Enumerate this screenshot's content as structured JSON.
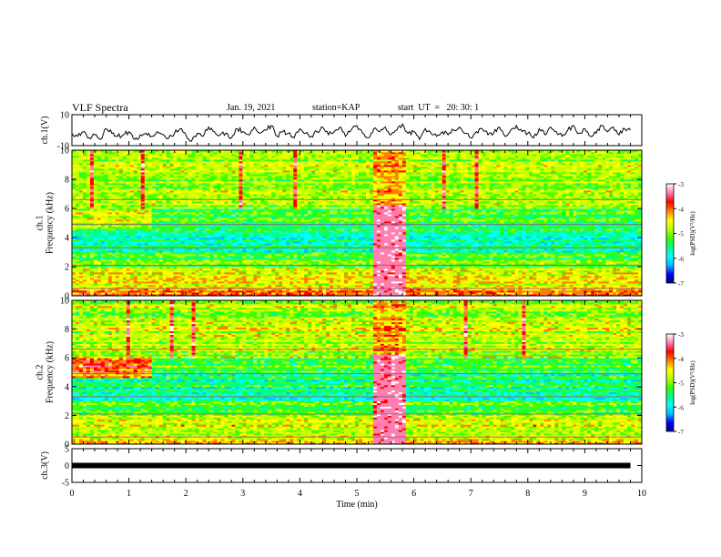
{
  "header": {
    "title": "VLF Spectra",
    "date": "Jan. 19, 2021",
    "station": "station=KAP",
    "start": "start  UT  =   20: 30: 1"
  },
  "chart_data": [
    {
      "type": "line",
      "name": "waveform-ch1",
      "ylabel": "ch.1(V)",
      "ylim": [
        -10,
        10
      ],
      "yticks": [
        "10",
        "-10"
      ],
      "xlim": [
        0,
        10
      ],
      "series": [
        {
          "x": [
            0.0,
            0.1,
            0.2,
            0.3,
            0.4,
            0.5,
            0.6,
            0.7,
            0.8,
            0.9,
            1.0,
            1.1,
            1.2,
            1.3,
            1.4,
            1.5,
            1.6,
            1.7,
            1.8,
            1.9,
            2.0,
            2.1,
            2.2,
            2.3,
            2.4,
            2.5,
            2.6,
            2.7,
            2.8,
            2.9,
            3.0,
            3.1,
            3.2,
            3.3,
            3.4,
            3.5,
            3.6,
            3.7,
            3.8,
            3.9,
            4.0,
            4.1,
            4.2,
            4.3,
            4.4,
            4.5,
            4.6,
            4.7,
            4.8,
            4.9,
            5.0,
            5.1,
            5.2,
            5.3,
            5.4,
            5.5,
            5.6,
            5.7,
            5.8,
            5.9,
            6.0,
            6.1,
            6.2,
            6.3,
            6.4,
            6.5,
            6.6,
            6.7,
            6.8,
            6.9,
            7.0,
            7.1,
            7.2,
            7.3,
            7.4,
            7.5,
            7.6,
            7.7,
            7.8,
            7.9,
            8.0,
            8.1,
            8.2,
            8.3,
            8.4,
            8.5,
            8.6,
            8.7,
            8.8,
            8.9,
            9.0,
            9.1,
            9.2,
            9.3,
            9.4,
            9.5,
            9.6,
            9.7,
            9.8
          ],
          "y": [
            -2,
            -4,
            -1,
            -5,
            -3,
            -6,
            1,
            -2,
            -4,
            -3,
            -1,
            -6,
            -3,
            -2,
            -4,
            -1,
            -3,
            -5,
            -2,
            1,
            -3,
            -7,
            -2,
            -4,
            2,
            -1,
            -3,
            -2,
            -5,
            1,
            -1,
            -3,
            2,
            -2,
            0,
            3,
            -4,
            -1,
            -2,
            -5,
            1,
            -2,
            -4,
            -1,
            2,
            -3,
            -1,
            2,
            -4,
            0,
            3,
            -2,
            -5,
            1,
            -1,
            2,
            -3,
            0,
            4,
            -2,
            -1,
            -6,
            1,
            -2,
            -4,
            -1,
            -3,
            0,
            2,
            -2,
            -5,
            -1,
            1,
            -3,
            -2,
            2,
            -4,
            0,
            3,
            -1,
            -2,
            -5,
            1,
            -3,
            2,
            -1,
            -4,
            0,
            3,
            -2,
            1,
            -4,
            -2,
            3,
            -1,
            2,
            -3,
            1,
            0
          ]
        }
      ]
    },
    {
      "type": "heatmap",
      "name": "spectrogram-ch1",
      "ylabel": "ch.1\nFrequency (kHz)",
      "ylim": [
        0,
        10
      ],
      "yticks": [
        "0",
        "2",
        "4",
        "6",
        "8",
        "10"
      ],
      "xlim": [
        0,
        10
      ],
      "colorbar": {
        "label": "log(PSD)(V²/Hz)",
        "range": [
          -7,
          -3
        ],
        "ticks": [
          "-3",
          "-4",
          "-5",
          "-6",
          "-7"
        ]
      }
    },
    {
      "type": "heatmap",
      "name": "spectrogram-ch2",
      "ylabel": "ch.2\nFrequency (kHz)",
      "ylim": [
        0,
        10
      ],
      "yticks": [
        "0",
        "2",
        "4",
        "6",
        "8",
        "10"
      ],
      "xlim": [
        0,
        10
      ],
      "colorbar": {
        "label": "log(PSD)(V²/Hz)",
        "range": [
          -7,
          -3
        ],
        "ticks": [
          "-3",
          "-4",
          "-5",
          "-6",
          "-7"
        ]
      }
    },
    {
      "type": "line",
      "name": "waveform-ch3",
      "ylabel": "ch.3(V)",
      "ylim": [
        -5,
        5
      ],
      "yticks": [
        "5",
        "0",
        "-5"
      ],
      "xlim": [
        0,
        10
      ],
      "series": [
        {
          "x": [
            0,
            9.8
          ],
          "y": [
            0,
            0
          ]
        }
      ]
    }
  ],
  "xaxis": {
    "label": "Time  (min)",
    "ticks": [
      "0",
      "1",
      "2",
      "3",
      "4",
      "5",
      "6",
      "7",
      "8",
      "9",
      "10"
    ]
  },
  "colors": {
    "colormap": [
      "#000080",
      "#0000ff",
      "#00bfff",
      "#00ffff",
      "#00ff80",
      "#40ff00",
      "#c0ff00",
      "#ffff00",
      "#ff8000",
      "#ff0000",
      "#ff7fb0",
      "#ffffff"
    ]
  }
}
